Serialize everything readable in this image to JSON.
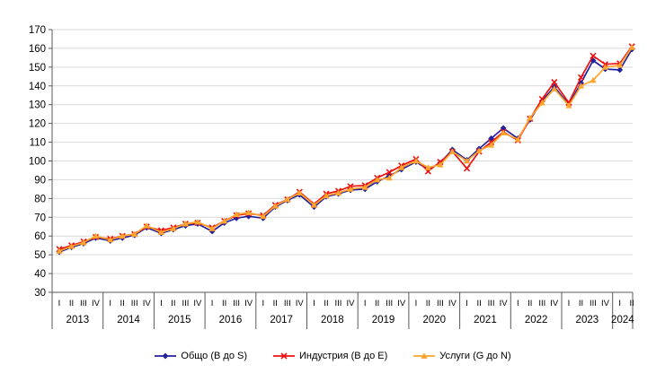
{
  "chart_data": {
    "type": "line",
    "title": "",
    "xlabel": "",
    "ylabel": "",
    "ylim": [
      30,
      170
    ],
    "y_ticks": [
      30,
      40,
      50,
      60,
      70,
      80,
      90,
      100,
      110,
      120,
      130,
      140,
      150,
      160,
      170
    ],
    "grid": true,
    "legend_position": "bottom",
    "x_years": [
      {
        "year": "2013",
        "quarters": [
          "I",
          "II",
          "III",
          "IV"
        ]
      },
      {
        "year": "2014",
        "quarters": [
          "I",
          "II",
          "III",
          "IV"
        ]
      },
      {
        "year": "2015",
        "quarters": [
          "I",
          "II",
          "III",
          "IV"
        ]
      },
      {
        "year": "2016",
        "quarters": [
          "I",
          "II",
          "III",
          "IV"
        ]
      },
      {
        "year": "2017",
        "quarters": [
          "I",
          "II",
          "III",
          "IV"
        ]
      },
      {
        "year": "2018",
        "quarters": [
          "I",
          "II",
          "III",
          "IV"
        ]
      },
      {
        "year": "2019",
        "quarters": [
          "I",
          "II",
          "III",
          "IV"
        ]
      },
      {
        "year": "2020",
        "quarters": [
          "I",
          "II",
          "III",
          "IV"
        ]
      },
      {
        "year": "2021",
        "quarters": [
          "I",
          "II",
          "III",
          "IV"
        ]
      },
      {
        "year": "2022",
        "quarters": [
          "I",
          "II",
          "III",
          "IV"
        ]
      },
      {
        "year": "2023",
        "quarters": [
          "I",
          "II",
          "III",
          "IV"
        ]
      },
      {
        "year": "2024",
        "quarters": [
          "I",
          "II"
        ]
      }
    ],
    "series": [
      {
        "name": "Общо (B до S)",
        "color": "#22229E",
        "marker": "diamond",
        "values": [
          51.5,
          54,
          56,
          59,
          57.5,
          59,
          60.5,
          64.5,
          61.5,
          63.5,
          65.5,
          66.5,
          62.5,
          67,
          69.5,
          70.5,
          69.5,
          75.5,
          79,
          82,
          75.5,
          81,
          82.5,
          84.5,
          85,
          89,
          92,
          95.5,
          99.5,
          95.5,
          99,
          106,
          100.5,
          106.5,
          112,
          117.5,
          112,
          122,
          132,
          139.5,
          130,
          141.5,
          153.5,
          149,
          148.5,
          159.5
        ]
      },
      {
        "name": "Индустрия (B до E)",
        "color": "#EE1111",
        "marker": "x",
        "values": [
          53,
          55,
          57,
          59.5,
          58.5,
          60,
          61,
          65,
          63,
          64.5,
          66.5,
          67,
          64.5,
          68,
          71,
          72,
          71,
          76.5,
          79.5,
          83.5,
          77,
          82.5,
          84,
          86.5,
          87,
          91,
          94,
          97.5,
          101,
          94.5,
          99.5,
          105,
          96,
          105,
          110,
          115.5,
          111,
          122.5,
          133,
          142,
          131,
          144.5,
          156,
          151.5,
          152,
          161
        ]
      },
      {
        "name": "Услуги (G до N)",
        "color": "#FFA42C",
        "marker": "triangle",
        "values": [
          52,
          54.5,
          56.5,
          60,
          58,
          60,
          61,
          65.5,
          62,
          64,
          66.5,
          67.5,
          64,
          68,
          71.5,
          72.5,
          70.5,
          76,
          79.5,
          83,
          76.5,
          81.5,
          83,
          85,
          86,
          90,
          91,
          96.5,
          100,
          96.5,
          98,
          105,
          100,
          105.5,
          108.5,
          115,
          111.5,
          123,
          131,
          138.5,
          129.5,
          140,
          143,
          150,
          151,
          160.5
        ]
      }
    ],
    "colors": {
      "gridline": "#D9D9D9",
      "axis": "#595959",
      "text": "#000000",
      "background": "#FFFFFF"
    }
  }
}
